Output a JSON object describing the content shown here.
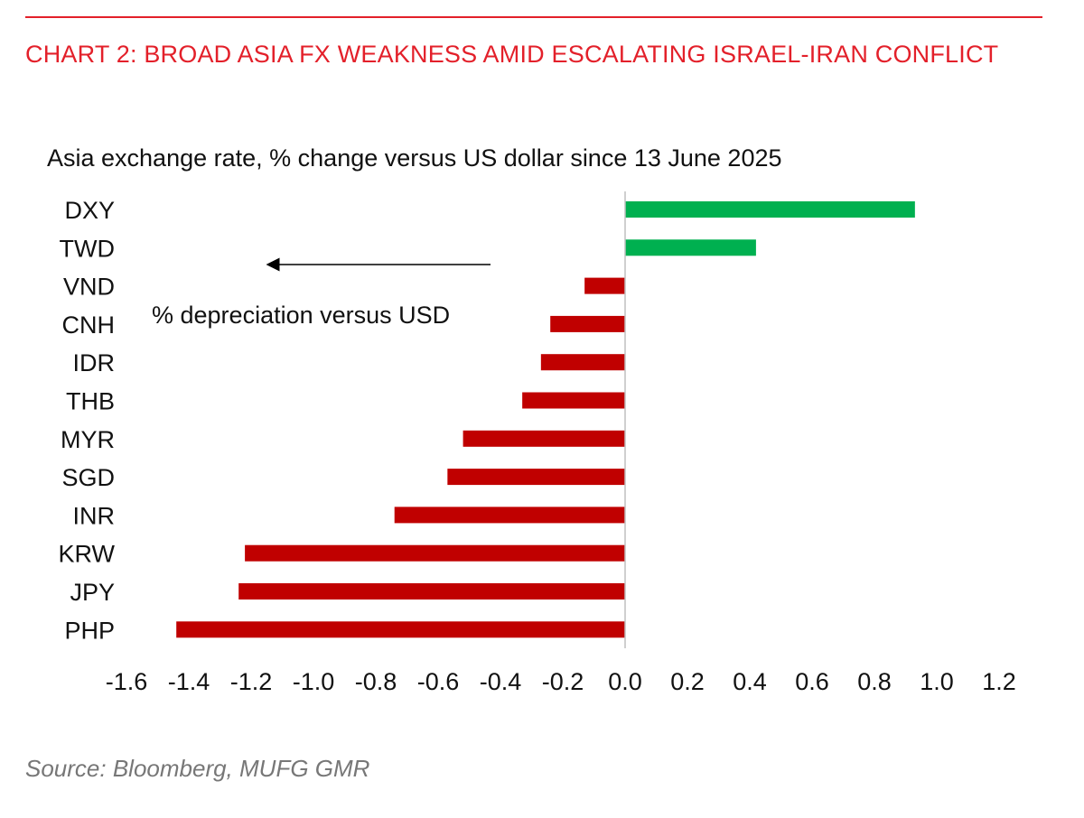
{
  "header": {
    "title": "CHART 2: BROAD ASIA FX WEAKNESS AMID ESCALATING ISRAEL-IRAN CONFLICT"
  },
  "footer": {
    "source": "Source: Bloomberg, MUFG GMR"
  },
  "chart_data": {
    "type": "bar",
    "orientation": "horizontal",
    "title": "Asia exchange rate, % change versus US dollar since 13 June 2025",
    "categories": [
      "DXY",
      "TWD",
      "VND",
      "CNH",
      "IDR",
      "THB",
      "MYR",
      "SGD",
      "INR",
      "KRW",
      "JPY",
      "PHP"
    ],
    "values": [
      0.93,
      0.42,
      -0.13,
      -0.24,
      -0.27,
      -0.33,
      -0.52,
      -0.57,
      -0.74,
      -1.22,
      -1.24,
      -1.44
    ],
    "colors": {
      "positive": "#00b050",
      "negative": "#c00000"
    },
    "xlim": [
      -1.6,
      1.2
    ],
    "xticks": [
      -1.6,
      -1.4,
      -1.2,
      -1.0,
      -0.8,
      -0.6,
      -0.4,
      -0.2,
      0.0,
      0.2,
      0.4,
      0.6,
      0.8,
      1.0,
      1.2
    ],
    "xtick_labels": [
      "-1.6",
      "-1.4",
      "-1.2",
      "-1.0",
      "-0.8",
      "-0.6",
      "-0.4",
      "-0.2",
      "0.0",
      "0.2",
      "0.4",
      "0.6",
      "0.8",
      "1.0",
      "1.2"
    ],
    "grid": false,
    "annotation": {
      "text": "% depreciation versus USD",
      "arrow_direction": "left"
    }
  }
}
